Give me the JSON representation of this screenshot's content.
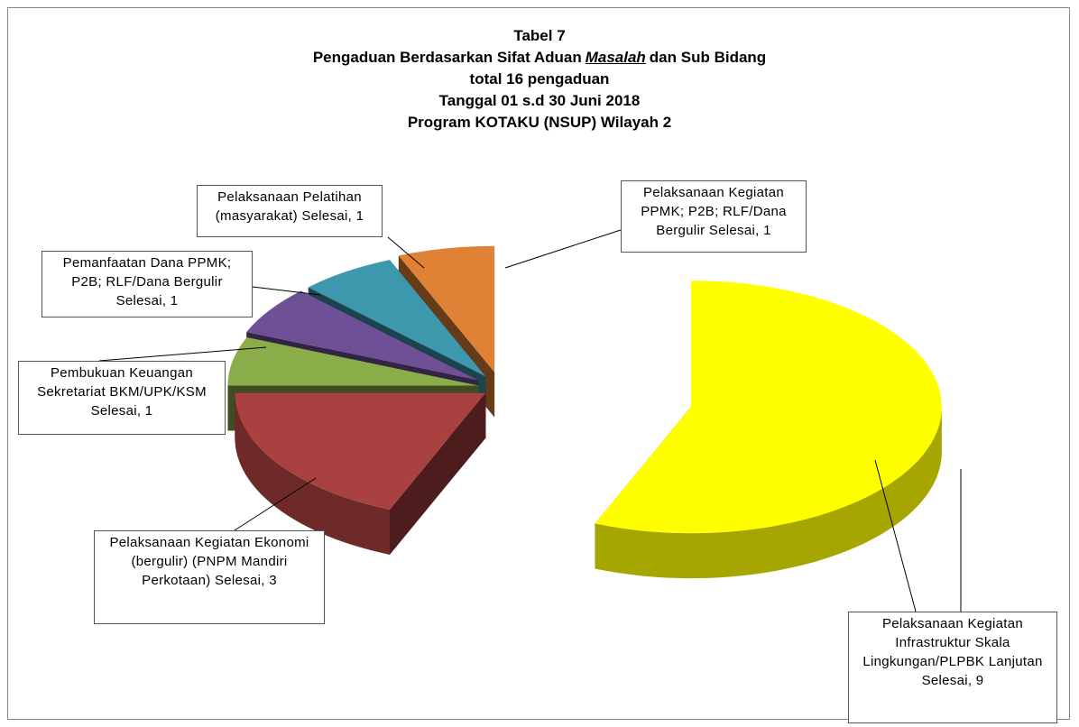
{
  "chart_data": {
    "type": "pie3d",
    "title": {
      "line1": "Tabel 7",
      "line2": [
        "Pengaduan Berdasarkan Sifat Aduan",
        "Masalah",
        "dan Sub Bidang"
      ],
      "line3": "total 16 pengaduan",
      "line4": "Tanggal 01 s.d 30 Juni 2018",
      "line5": "Program KOTAKU (NSUP) Wilayah 2"
    },
    "values": [
      9,
      3,
      1,
      1,
      1,
      1
    ],
    "value_labels": [
      "Pelaksanaan Kegiatan Infrastruktur Skala Lingkungan/PLPBK Lanjutan Selesai, 9",
      "Pelaksanaan Kegiatan Ekonomi (bergulir) (PNPM Mandiri Perkotaan) Selesai, 3",
      "Pembukuan Keuangan Sekretariat BKM/UPK/KSM Selesai, 1",
      "Pemanfaatan Dana PPMK; P2B; RLF/Dana Bergulir Selesai, 1",
      "Pelaksanaan Pelatihan (masyarakat) Selesai, 1",
      "Pelaksanaan Kegiatan PPMK; P2B; RLF/Dana Bergulir Selesai, 1"
    ],
    "colors": [
      "#ffff00",
      "#a8413f",
      "#8aad4a",
      "#6f4f96",
      "#3d97ad",
      "#e08235"
    ]
  }
}
